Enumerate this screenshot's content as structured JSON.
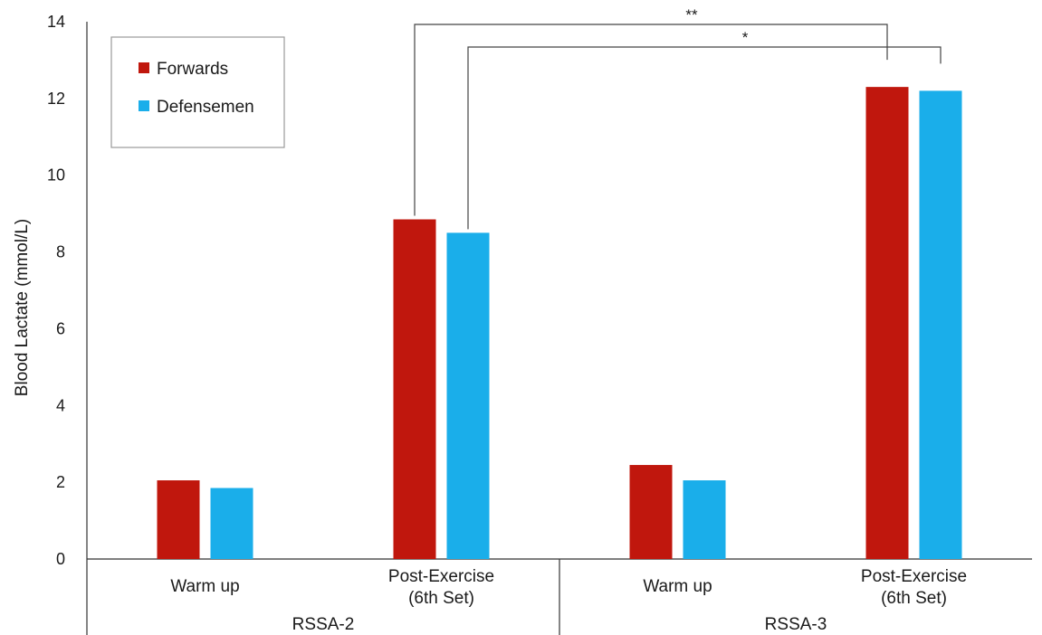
{
  "chart_data": {
    "type": "bar",
    "title": "",
    "xlabel": "",
    "ylabel": "Blood Lactate (mmol/L)",
    "ylim": [
      0,
      14
    ],
    "yticks": [
      0,
      2,
      4,
      6,
      8,
      10,
      12,
      14
    ],
    "categories": [
      "Warm up",
      "Post-Exercise (6th Set)",
      "Warm up",
      "Post-Exercise (6th Set)"
    ],
    "category_lines": [
      [
        "Warm up"
      ],
      [
        "Post-Exercise",
        "(6th Set)"
      ],
      [
        "Warm up"
      ],
      [
        "Post-Exercise",
        "(6th Set)"
      ]
    ],
    "groups": [
      {
        "label": "RSSA-2",
        "categories": [
          0,
          1
        ]
      },
      {
        "label": "RSSA-3",
        "categories": [
          2,
          3
        ]
      }
    ],
    "series": [
      {
        "name": "Forwards",
        "color": "#c0170d",
        "values": [
          2.05,
          8.85,
          2.45,
          12.3
        ]
      },
      {
        "name": "Defensemen",
        "color": "#1aaeea",
        "values": [
          1.85,
          8.5,
          2.05,
          12.2
        ]
      }
    ],
    "significance": [
      {
        "label": "**",
        "from": {
          "series": 0,
          "category": 1
        },
        "to": {
          "series": 0,
          "category": 3
        }
      },
      {
        "label": "*",
        "from": {
          "series": 1,
          "category": 1
        },
        "to": {
          "series": 1,
          "category": 3
        }
      }
    ],
    "legend_position": "top-left",
    "grid": false
  }
}
